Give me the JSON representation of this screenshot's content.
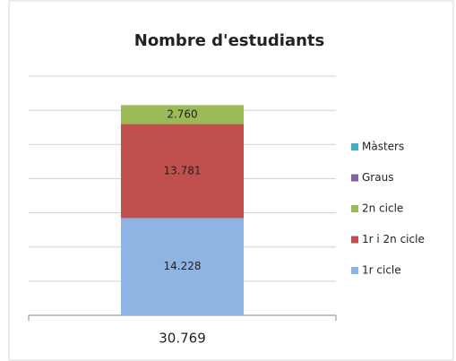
{
  "chart_data": {
    "type": "stacked_bar",
    "title": "Nombre d'estudiants",
    "categories": [
      "30.769"
    ],
    "series": [
      {
        "name": "1r cicle",
        "color": "#8db4e2",
        "values": [
          14228
        ],
        "value_labels": [
          "14.228"
        ]
      },
      {
        "name": "1r i 2n cicle",
        "color": "#c0504d",
        "values": [
          13781
        ],
        "value_labels": [
          "13.781"
        ]
      },
      {
        "name": "2n cicle",
        "color": "#9bbb59",
        "values": [
          2760
        ],
        "value_labels": [
          "2.760"
        ]
      },
      {
        "name": "Graus",
        "color": "#8064a2",
        "values": [
          0
        ]
      },
      {
        "name": "Màsters",
        "color": "#4bacc6",
        "values": [
          0
        ]
      }
    ],
    "ylim": [
      0,
      35000
    ],
    "yticks": [
      0,
      5000,
      10000,
      15000,
      20000,
      25000,
      30000,
      35000
    ],
    "grid": true,
    "legend": "right"
  }
}
